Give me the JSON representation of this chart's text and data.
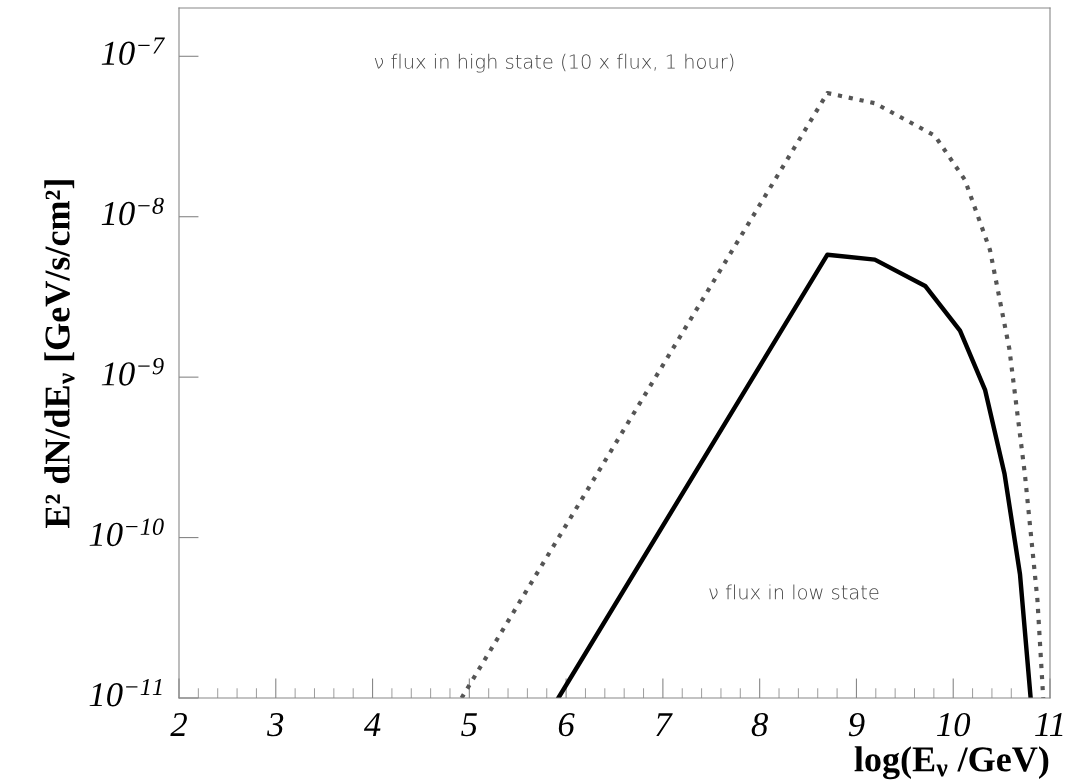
{
  "chart_data": {
    "type": "line",
    "xlabel": "log(E$_{ν}$ /GeV)",
    "ylabel": "E² dN/dE$_{ν}$ [GeV/s/cm²]",
    "log": "y",
    "xlim": [
      2,
      11
    ],
    "xticks": [
      2,
      3,
      4,
      5,
      6,
      7,
      8,
      9,
      10,
      11
    ],
    "ylim": [
      1e-11,
      2e-07
    ],
    "yticks": [
      {
        "value": 1e-07,
        "label": "10$^{−7}$"
      },
      {
        "value": 1e-08,
        "label": "10$^{−8}$"
      },
      {
        "value": 1e-09,
        "label": "10$^{−9}$"
      },
      {
        "value": 1e-10,
        "label": "10$^{−10}$"
      },
      {
        "value": 1e-11,
        "label": "10$^{−11}$"
      }
    ],
    "grid": false,
    "legend": false,
    "marker": "none",
    "series": [
      {
        "color": "#555555",
        "line_style": "dotted",
        "x": [
          4.92,
          8.7,
          9.19,
          9.81,
          10.12,
          10.38,
          10.58,
          10.74,
          10.87,
          10.93
        ],
        "values": [
          1e-11,
          5.9e-08,
          5.1e-08,
          3.2e-08,
          1.7e-08,
          6.2e-09,
          1.5e-09,
          2.5e-10,
          4.1e-11,
          1e-11
        ]
      },
      {
        "color": "#000000",
        "line_style": "solid",
        "x": [
          5.92,
          8.7,
          9.19,
          9.71,
          10.07,
          10.33,
          10.53,
          10.69,
          10.8
        ],
        "values": [
          1e-11,
          5.8e-09,
          5.4e-09,
          3.7e-09,
          1.95e-09,
          8.3e-10,
          2.5e-10,
          5.9e-11,
          1e-11
        ]
      }
    ],
    "annotations": [
      "ν flux in high state (10 x flux, 1 hour)",
      "ν flux in low state"
    ]
  }
}
